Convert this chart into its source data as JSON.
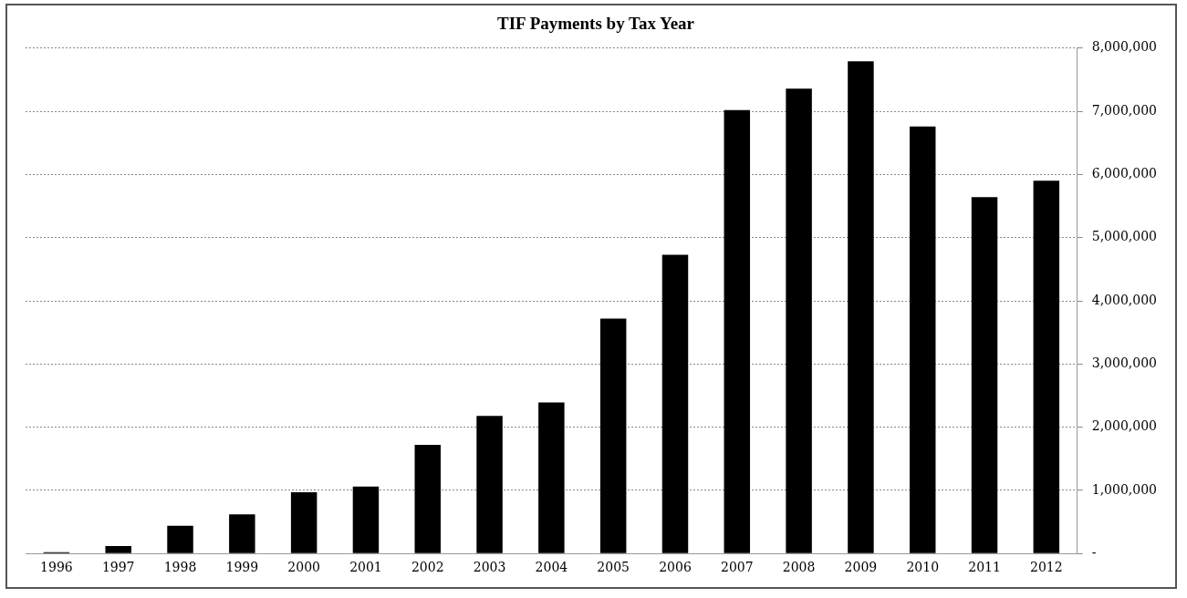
{
  "chart_data": {
    "type": "bar",
    "title": "TIF Payments by Tax Year",
    "categories": [
      "1996",
      "1997",
      "1998",
      "1999",
      "2000",
      "2001",
      "2002",
      "2003",
      "2004",
      "2005",
      "2006",
      "2007",
      "2008",
      "2009",
      "2010",
      "2011",
      "2012"
    ],
    "values": [
      20000,
      120000,
      440000,
      620000,
      970000,
      1060000,
      1720000,
      2180000,
      2390000,
      3720000,
      4730000,
      7020000,
      7360000,
      7790000,
      6760000,
      5640000,
      5900000
    ],
    "color": "#000000",
    "ylim": [
      0,
      8000000
    ],
    "yticks": [
      {
        "value": 0,
        "label": "-"
      },
      {
        "value": 1000000,
        "label": "1,000,000"
      },
      {
        "value": 2000000,
        "label": "2,000,000"
      },
      {
        "value": 3000000,
        "label": "3,000,000"
      },
      {
        "value": 4000000,
        "label": "4,000,000"
      },
      {
        "value": 5000000,
        "label": "5,000,000"
      },
      {
        "value": 6000000,
        "label": "6,000,000"
      },
      {
        "value": 7000000,
        "label": "7,000,000"
      },
      {
        "value": 8000000,
        "label": "8,000,000"
      }
    ],
    "grid": "y"
  }
}
